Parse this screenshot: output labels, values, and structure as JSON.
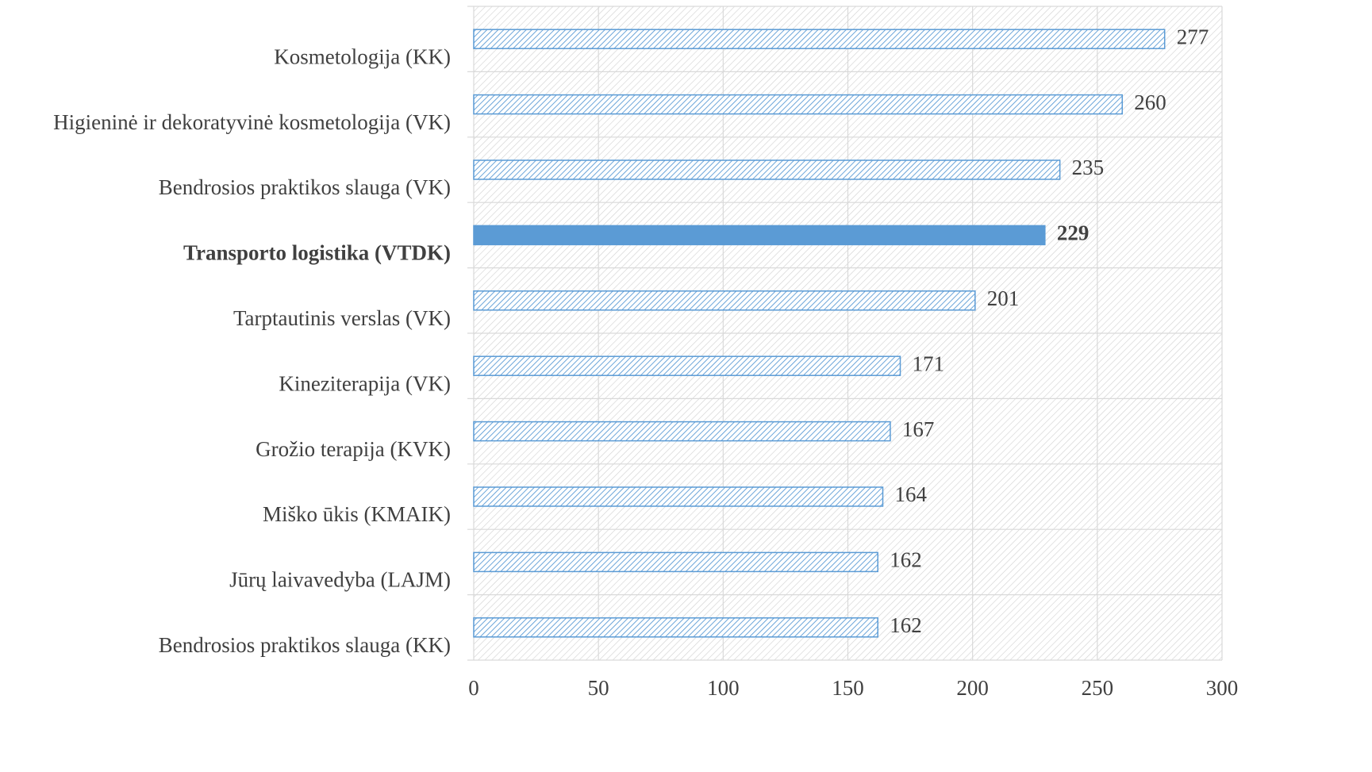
{
  "chart_data": {
    "type": "hbar",
    "categories": [
      "Kosmetologija (KK)",
      "Higieninė ir dekoratyvinė kosmetologija (VK)",
      "Bendrosios praktikos slauga (VK)",
      "Transporto logistika (VTDK)",
      "Tarptautinis verslas (VK)",
      "Kineziterapija (VK)",
      "Grožio terapija (KVK)",
      "Miško ūkis (KMAIK)",
      "Jūrų laivavedyba (LAJM)",
      "Bendrosios praktikos slauga (KK)"
    ],
    "values": [
      277,
      260,
      235,
      229,
      201,
      171,
      167,
      164,
      162,
      162
    ],
    "color": "#5b9bd5",
    "highlight_index": 3,
    "xlim": [
      0,
      300
    ],
    "xticks": [
      0,
      50,
      100,
      150,
      200,
      250,
      300
    ],
    "grid": true
  }
}
